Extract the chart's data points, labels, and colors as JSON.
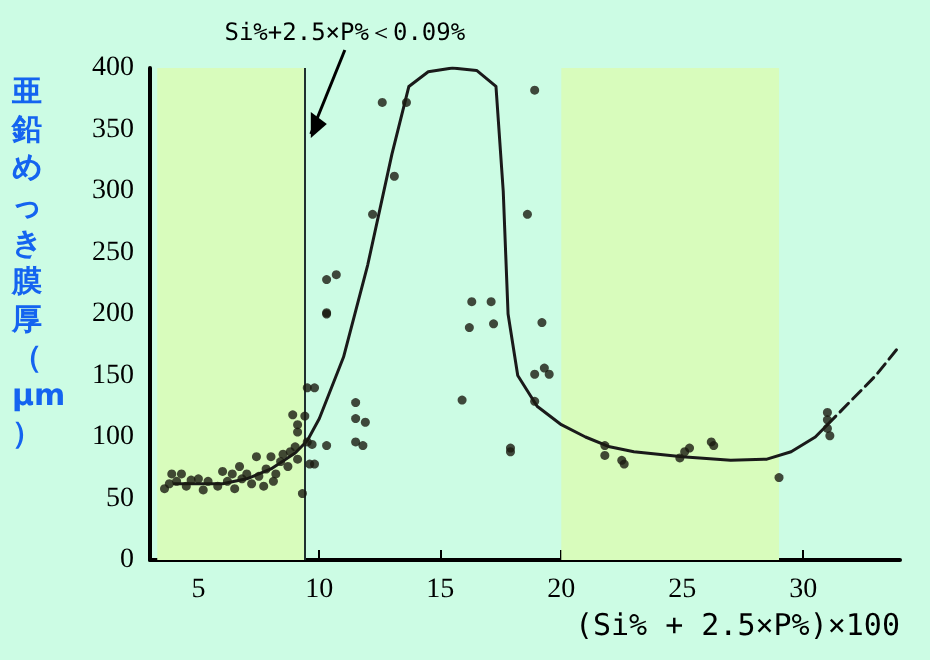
{
  "chart_data": {
    "type": "scatter",
    "xlabel": "(Si% + 2.5×P%)×100",
    "ylabel": "亜鉛めっき膜厚（μm）",
    "xlim": [
      3,
      34
    ],
    "xticks": [
      5,
      10,
      15,
      20,
      25,
      30
    ],
    "ylim": [
      0,
      400
    ],
    "yticks": [
      0,
      50,
      100,
      150,
      200,
      250,
      300,
      350,
      400
    ],
    "grid": false,
    "series": [
      {
        "type": "scatter",
        "color": "#1a1a10",
        "marker": "circle",
        "x": [
          3.6,
          3.8,
          3.9,
          4.1,
          4.3,
          4.5,
          4.7,
          5.0,
          5.2,
          5.4,
          5.8,
          6.0,
          6.2,
          6.4,
          6.5,
          6.7,
          6.8,
          7.0,
          7.2,
          7.4,
          7.5,
          7.7,
          7.8,
          8.0,
          8.1,
          8.2,
          8.4,
          8.5,
          8.7,
          8.8,
          9.0,
          9.1,
          8.9,
          9.1,
          9.1,
          9.3,
          9.4,
          9.5,
          9.8,
          9.5,
          9.7,
          10.3,
          9.6,
          9.8,
          10.3,
          10.3,
          10.7,
          10.3,
          11.5,
          11.5,
          11.9,
          11.5,
          11.8,
          12.2,
          12.6,
          13.1,
          13.6,
          15.9,
          16.3,
          17.1,
          16.2,
          17.2,
          17.9,
          17.9,
          18.6,
          18.9,
          18.9,
          18.9,
          19.2,
          19.3,
          19.5,
          21.8,
          21.8,
          22.5,
          22.6,
          24.9,
          25.1,
          25.3,
          26.2,
          26.3,
          29.0,
          31.0,
          31.0,
          31.0,
          31.1
        ],
        "values": [
          58,
          62,
          70,
          64,
          70,
          60,
          65,
          66,
          57,
          64,
          60,
          72,
          64,
          70,
          58,
          76,
          66,
          70,
          62,
          84,
          68,
          60,
          74,
          84,
          64,
          70,
          80,
          86,
          76,
          88,
          92,
          82,
          118,
          104,
          110,
          54,
          117,
          140,
          140,
          96,
          94,
          93,
          78,
          78,
          200,
          228,
          232,
          201,
          128,
          115,
          112,
          96,
          93,
          281,
          372,
          312,
          372,
          130,
          210,
          210,
          189,
          192,
          88,
          91,
          281,
          382,
          129,
          151,
          193,
          156,
          151,
          93,
          85,
          81,
          78,
          83,
          88,
          91,
          96,
          93,
          67,
          120,
          114,
          107,
          101
        ]
      },
      {
        "type": "line",
        "color": "#1a1a1a",
        "marker": "none",
        "line_style": "solid",
        "x": [
          4,
          6,
          7,
          8,
          9,
          9.5,
          10,
          11,
          12,
          13,
          13.7,
          14.5,
          15.5,
          16.5,
          17.3,
          17.6,
          17.8,
          18.2,
          19,
          20,
          21,
          22,
          23,
          25,
          27,
          28.5,
          29.5,
          30.5,
          31
        ],
        "values": [
          62,
          62,
          66,
          74,
          87,
          97,
          115,
          165,
          240,
          330,
          385,
          397,
          400,
          398,
          385,
          300,
          200,
          150,
          125,
          110,
          100,
          92,
          88,
          84,
          81,
          82,
          88,
          100,
          110
        ]
      },
      {
        "type": "line",
        "color": "#1a1a1a",
        "marker": "none",
        "line_style": "dashed",
        "x": [
          31,
          32,
          33,
          33.9
        ],
        "values": [
          110,
          130,
          150,
          172
        ]
      }
    ],
    "bands": [
      {
        "axis": "x",
        "from": 3.3,
        "to": 9.4,
        "color": "#d8fcbc"
      },
      {
        "axis": "x",
        "from": 20,
        "to": 29,
        "color": "#d8fcbc"
      }
    ],
    "ref_lines": [
      {
        "axis": "x",
        "value": 9.4,
        "label": "Si%+2.5×P%＜0.09%",
        "color": "#203030"
      }
    ]
  }
}
